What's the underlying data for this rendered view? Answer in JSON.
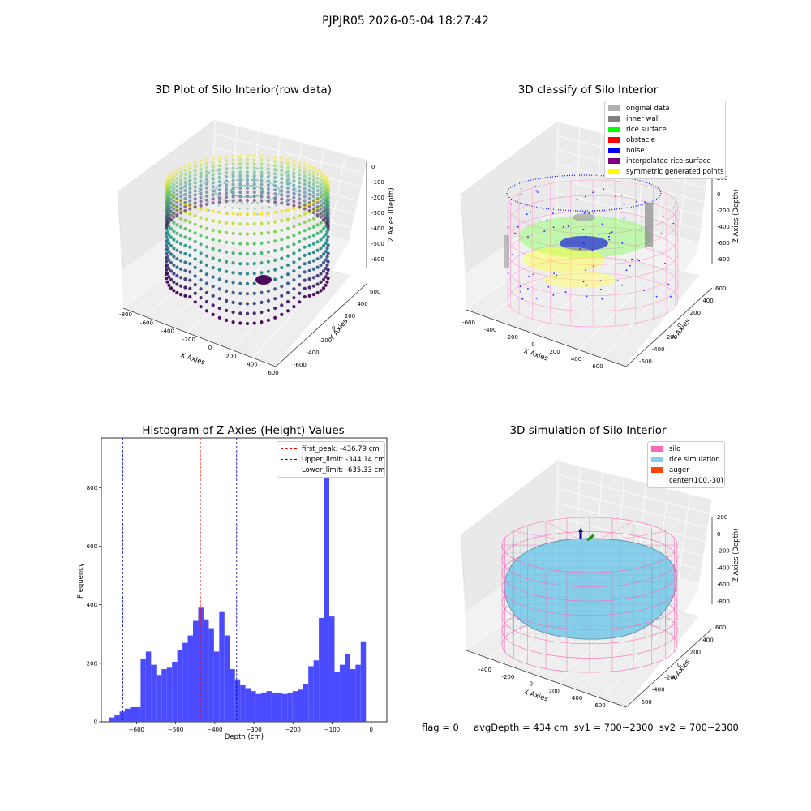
{
  "figure": {
    "suptitle": "PJPJR05 2026-05-04 18:27:42",
    "footer": "flag = 0     avgDepth = 434 cm  sv1 = 700~2300  sv2 = 700~2300"
  },
  "colors": {
    "histogram_bar": "#4a4aff",
    "peak_line": "#ff0000",
    "limit_line": "#0000cc",
    "silo": "#ff69b4",
    "rice_simulation": "#87ceeb",
    "auger": "#ff4500"
  },
  "plot1": {
    "title": "3D Plot of Silo Interior(row data)",
    "xlabel": "X Axies",
    "ylabel": "Y Axies",
    "zlabel": "Z Axies (Depth)",
    "xticks": [
      "-800",
      "-600",
      "-400",
      "-200",
      "0",
      "200",
      "400",
      "600"
    ],
    "yticks": [
      "-600",
      "-400",
      "-200",
      "0",
      "200",
      "400",
      "600"
    ],
    "zticks": [
      "0",
      "-100",
      "-200",
      "-300",
      "-400",
      "-500",
      "-600"
    ]
  },
  "plot2": {
    "title": "3D classify of Silo Interior",
    "xlabel": "X Axies",
    "ylabel": "Y Axies",
    "zlabel": "Z Axies (Depth)",
    "xticks": [
      "-600",
      "-400",
      "-200",
      "0",
      "200",
      "400",
      "600"
    ],
    "yticks": [
      "-600",
      "-400",
      "-200",
      "0",
      "200",
      "400",
      "600"
    ],
    "zticks": [
      "200",
      "0",
      "-200",
      "-400",
      "-600",
      "-800"
    ],
    "legend": [
      {
        "label": "original data",
        "color": "#b0b0b0"
      },
      {
        "label": "inner wall",
        "color": "#808080"
      },
      {
        "label": "rice surface",
        "color": "#00ff00"
      },
      {
        "label": "obstacle",
        "color": "#ff0000"
      },
      {
        "label": "noise",
        "color": "#0000ff"
      },
      {
        "label": "interpolated rice surface",
        "color": "#800080"
      },
      {
        "label": "symmetric generated points",
        "color": "#ffff00"
      }
    ]
  },
  "plot4": {
    "title": "3D simulation of Silo Interior",
    "xlabel": "X Axies",
    "ylabel": "Y Axies",
    "zlabel": "Z Axies (Depth)",
    "xticks": [
      "-400",
      "-200",
      "0",
      "200",
      "400",
      "600"
    ],
    "yticks": [
      "-600",
      "-400",
      "-200",
      "0",
      "200",
      "400",
      "600"
    ],
    "zticks": [
      "200",
      "0",
      "-200",
      "-400",
      "-600",
      "-800"
    ],
    "legend": [
      {
        "label": "silo",
        "color": "#ff69b4"
      },
      {
        "label": "rice simulation",
        "color": "#87ceeb"
      },
      {
        "label": "auger",
        "color": "#ff4500"
      },
      {
        "label": "center(100,-30)",
        "color": ""
      }
    ]
  },
  "chart_data": {
    "type": "bar",
    "title": "Histogram of Z-Axies (Height) Values",
    "xlabel": "Depth (cm)",
    "ylabel": "Frequency",
    "xlim": [
      -690,
      40
    ],
    "ylim": [
      0,
      970
    ],
    "xticks": [
      -600,
      -500,
      -400,
      -300,
      -200,
      -100,
      0
    ],
    "yticks": [
      0,
      200,
      400,
      600,
      800
    ],
    "bin_start": -670,
    "bin_width": 13.4,
    "values": [
      15,
      22,
      35,
      45,
      50,
      50,
      215,
      240,
      195,
      160,
      180,
      185,
      205,
      245,
      270,
      295,
      345,
      390,
      350,
      320,
      240,
      375,
      295,
      180,
      145,
      125,
      115,
      105,
      95,
      100,
      105,
      100,
      100,
      95,
      100,
      105,
      110,
      130,
      190,
      210,
      355,
      915,
      360,
      170,
      195,
      230,
      180,
      195,
      275
    ],
    "reference_lines": [
      {
        "label": "first_peak: -436.79 cm",
        "x": -436.79,
        "color": "#ff0000"
      },
      {
        "label": "Upper_limit: -344.14 cm",
        "x": -344.14,
        "color": "#0000cc"
      },
      {
        "label": "Lower_limit: -635.33 cm",
        "x": -635.33,
        "color": "#0000cc"
      }
    ]
  }
}
